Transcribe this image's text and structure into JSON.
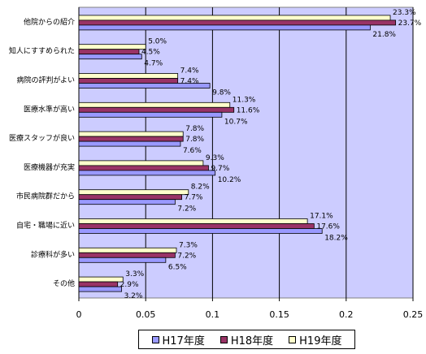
{
  "chart_data": {
    "type": "bar",
    "orientation": "horizontal",
    "categories": [
      "他院からの紹介",
      "知人にすすめられた",
      "病院の評判がよい",
      "医療水準が高い",
      "医療スタッフが良い",
      "医療機器が充実",
      "市民病院群だから",
      "自宅・職場に近い",
      "診療科が多い",
      "その他"
    ],
    "series": [
      {
        "name": "H19年度",
        "color": "#ffffcc",
        "values": [
          0.233,
          0.05,
          0.074,
          0.113,
          0.078,
          0.093,
          0.082,
          0.171,
          0.073,
          0.033
        ],
        "labels": [
          "23.3%",
          "5.0%",
          "7.4%",
          "11.3%",
          "7.8%",
          "9.3%",
          "8.2%",
          "17.1%",
          "7.3%",
          "3.3%"
        ]
      },
      {
        "name": "H18年度",
        "color": "#993366",
        "values": [
          0.237,
          0.045,
          0.074,
          0.116,
          0.078,
          0.097,
          0.077,
          0.176,
          0.072,
          0.029
        ],
        "labels": [
          "23.7%",
          "4.5%",
          "7.4%",
          "11.6%",
          "7.8%",
          "9.7%",
          "7.7%",
          "17.6%",
          "7.2%",
          "2.9%"
        ]
      },
      {
        "name": "H17年度",
        "color": "#9999ff",
        "values": [
          0.218,
          0.047,
          0.098,
          0.107,
          0.076,
          0.102,
          0.072,
          0.182,
          0.065,
          0.032
        ],
        "labels": [
          "21.8%",
          "4.7%",
          "9.8%",
          "10.7%",
          "7.6%",
          "10.2%",
          "7.2%",
          "18.2%",
          "6.5%",
          "3.2%"
        ]
      }
    ],
    "xlim": [
      0,
      0.25
    ],
    "xticks": [
      "0",
      "0.05",
      "0.1",
      "0.15",
      "0.2",
      "0.25"
    ],
    "grid": true,
    "plot_background": "#ccccff",
    "legend_position": "bottom"
  },
  "legend": {
    "items": [
      {
        "label": "H17年度",
        "color": "#9999ff"
      },
      {
        "label": "H18年度",
        "color": "#993366"
      },
      {
        "label": "H19年度",
        "color": "#ffffcc"
      }
    ]
  }
}
